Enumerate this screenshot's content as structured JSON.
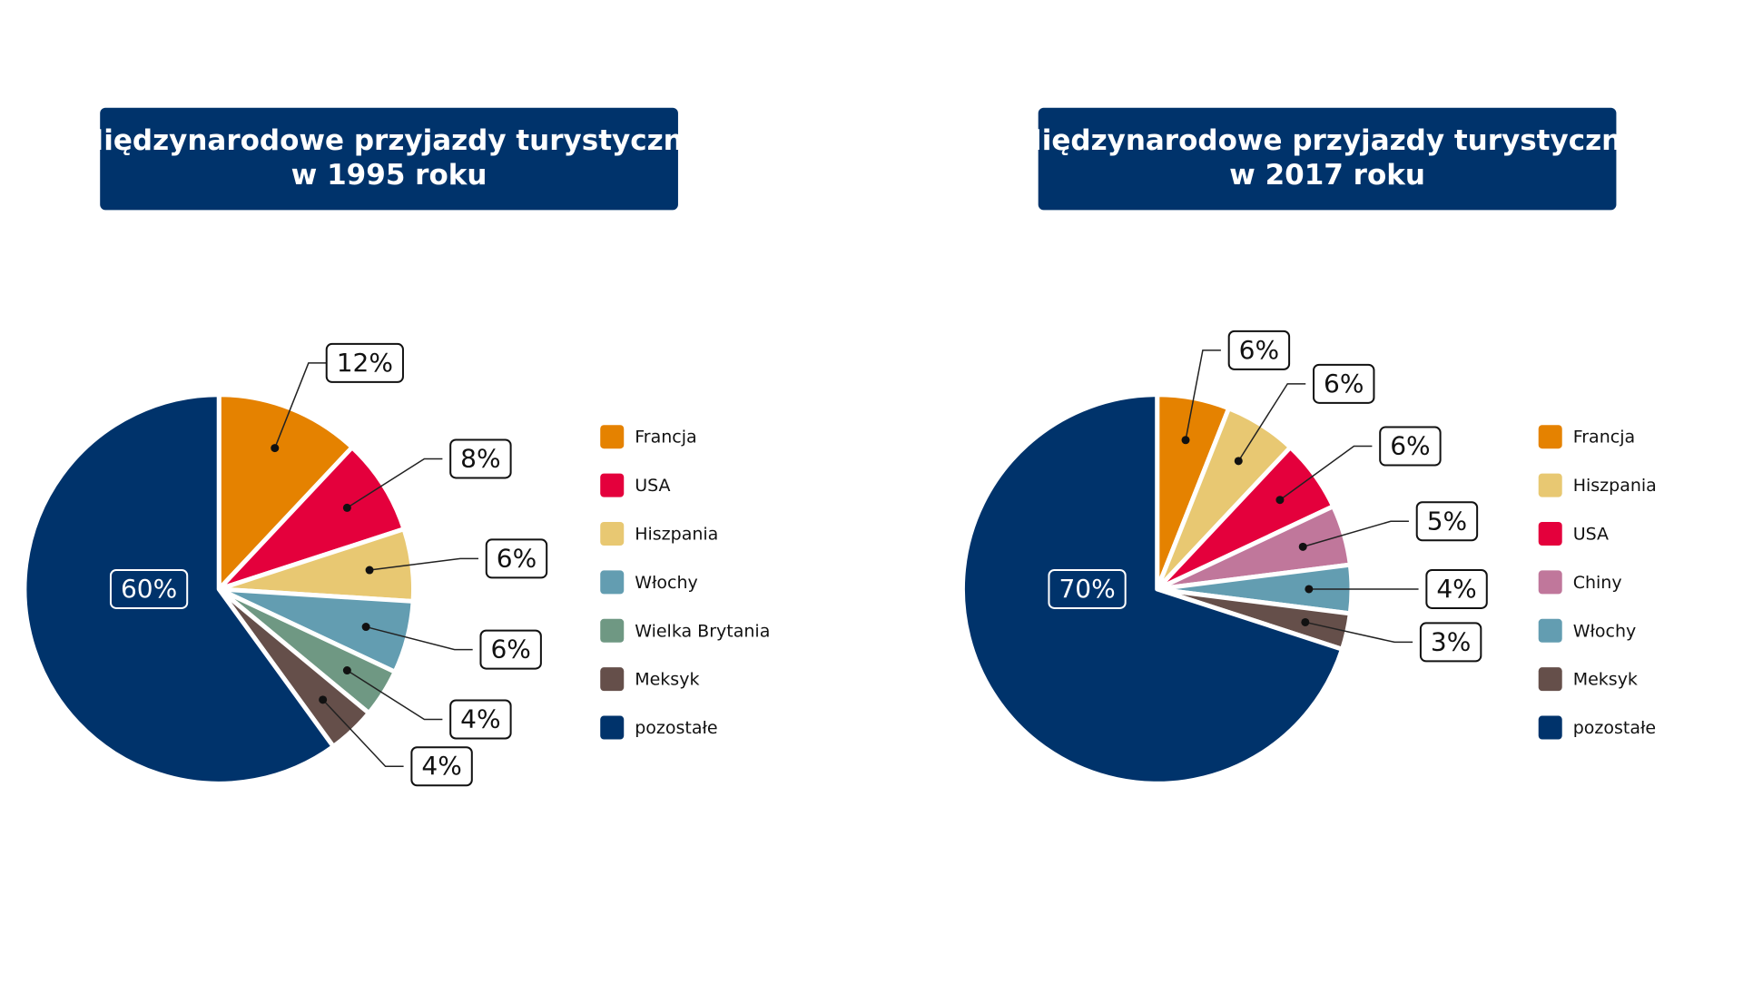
{
  "chart_data": [
    {
      "type": "pie",
      "title": [
        "Międzynarodowe przyjazdy turystyczne",
        "w 1995 roku"
      ],
      "categories": [
        "Francja",
        "USA",
        "Hiszpania",
        "Włochy",
        "Wielka Brytania",
        "Meksyk",
        "pozostałe"
      ],
      "values": [
        12,
        8,
        6,
        6,
        4,
        4,
        60
      ],
      "value_labels": [
        "12%",
        "8%",
        "6%",
        "6%",
        "4%",
        "4%",
        "60%"
      ],
      "colors": [
        "#e58200",
        "#e4003c",
        "#e8c872",
        "#639db1",
        "#6f9883",
        "#654f4a",
        "#00336b"
      ]
    },
    {
      "type": "pie",
      "title": [
        "Międzynarodowe przyjazdy turystyczne",
        "w 2017 roku"
      ],
      "categories": [
        "Francja",
        "Hiszpania",
        "USA",
        "Chiny",
        "Włochy",
        "Meksyk",
        "pozostałe"
      ],
      "values": [
        6,
        6,
        6,
        5,
        4,
        3,
        70
      ],
      "value_labels": [
        "6%",
        "6%",
        "6%",
        "5%",
        "4%",
        "3%",
        "70%"
      ],
      "colors": [
        "#e58200",
        "#e8c872",
        "#e4003c",
        "#c0779b",
        "#639db1",
        "#654f4a",
        "#00336b"
      ]
    }
  ]
}
